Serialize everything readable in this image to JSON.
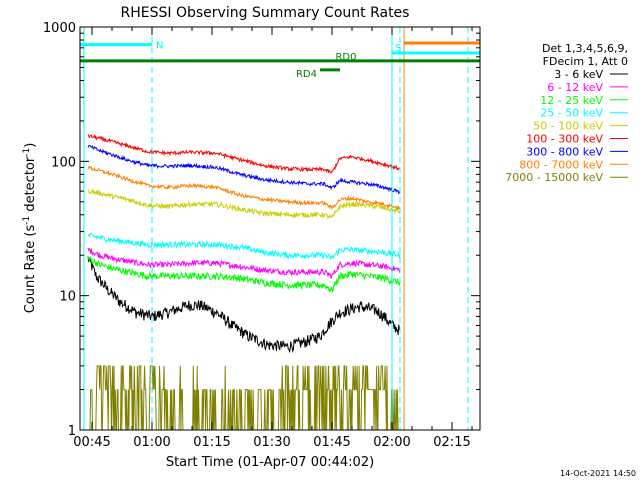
{
  "chart_data": {
    "type": "line",
    "title": "RHESSI Observing Summary Count Rates",
    "xlabel": "Start Time (01-Apr-07 00:44:02)",
    "ylabel_prefix": "Count Rate (s",
    "ylabel_sup1": "-1",
    "ylabel_mid": " detector",
    "ylabel_sup2": "-1",
    "ylabel_suffix": ")",
    "yscale": "log",
    "xlim": [
      -2,
      98
    ],
    "ylim": [
      1,
      1000
    ],
    "x_ticks": [
      {
        "x": 1,
        "label": "00:45"
      },
      {
        "x": 16,
        "label": "01:00"
      },
      {
        "x": 31,
        "label": "01:15"
      },
      {
        "x": 46,
        "label": "01:30"
      },
      {
        "x": 61,
        "label": "01:45"
      },
      {
        "x": 76,
        "label": "02:00"
      },
      {
        "x": 91,
        "label": "02:15"
      }
    ],
    "y_ticks": [
      {
        "y": 1,
        "label": "1"
      },
      {
        "y": 10,
        "label": "10"
      },
      {
        "y": 100,
        "label": "100"
      },
      {
        "y": 1000,
        "label": "1000"
      }
    ],
    "legend_header": [
      "Det 1,3,4,5,6,9,",
      "FDecim 1, Att 0"
    ],
    "series": [
      {
        "name": "3 - 6 keV",
        "color": "#000000",
        "noise": 0.1,
        "x": [
          0,
          2,
          5,
          8,
          12,
          16,
          20,
          25,
          28,
          32,
          36,
          40,
          45,
          50,
          54,
          58,
          61,
          63,
          66,
          68,
          72,
          74,
          76,
          78
        ],
        "values": [
          19,
          14,
          11,
          9,
          7.5,
          7,
          7.5,
          8.5,
          8.5,
          7.5,
          6,
          5,
          4.3,
          4.2,
          4.5,
          5,
          6.5,
          7.5,
          8,
          8.3,
          7.8,
          7,
          6,
          5.5
        ]
      },
      {
        "name": "6 - 12 keV",
        "color": "#ff00ff",
        "noise": 0.05,
        "x": [
          0,
          3,
          6,
          10,
          15,
          20,
          26,
          32,
          38,
          44,
          50,
          55,
          59,
          61,
          63,
          66,
          70,
          74,
          78
        ],
        "values": [
          22,
          20,
          19,
          18,
          17,
          17,
          17.5,
          17.5,
          16.5,
          15.5,
          15,
          15,
          15,
          14,
          17,
          17.5,
          17,
          16.5,
          15.5
        ]
      },
      {
        "name": "12 - 25 keV",
        "color": "#00ff00",
        "noise": 0.06,
        "x": [
          0,
          3,
          6,
          10,
          15,
          20,
          26,
          32,
          38,
          44,
          50,
          55,
          59,
          61,
          63,
          66,
          70,
          74,
          78
        ],
        "values": [
          19,
          17,
          16,
          15,
          14,
          14,
          14,
          14,
          13.5,
          12.5,
          12,
          12,
          12,
          11,
          14,
          14.5,
          14,
          13.5,
          12.5
        ]
      },
      {
        "name": "25 - 50 keV",
        "color": "#00ffff",
        "noise": 0.05,
        "x": [
          0,
          3,
          6,
          10,
          15,
          20,
          26,
          32,
          38,
          44,
          50,
          55,
          59,
          61,
          63,
          66,
          70,
          74,
          78
        ],
        "values": [
          28,
          27,
          26,
          25,
          24,
          24,
          24,
          24,
          23,
          21,
          20,
          20,
          20,
          19,
          22,
          22,
          21.5,
          21,
          20
        ]
      },
      {
        "name": "50 - 100 keV",
        "color": "#cccc00",
        "noise": 0.04,
        "x": [
          0,
          3,
          6,
          10,
          15,
          20,
          26,
          32,
          38,
          44,
          50,
          55,
          59,
          61,
          63,
          66,
          70,
          74,
          78
        ],
        "values": [
          60,
          58,
          55,
          52,
          47,
          46,
          48,
          48,
          44,
          41,
          40,
          40,
          40,
          38,
          46,
          48,
          47,
          45,
          42
        ]
      },
      {
        "name": "100 - 300 keV",
        "color": "#ff0000",
        "noise": 0.03,
        "x": [
          0,
          3,
          6,
          10,
          15,
          20,
          26,
          32,
          38,
          44,
          50,
          55,
          59,
          61,
          63,
          66,
          70,
          74,
          78
        ],
        "values": [
          155,
          148,
          140,
          130,
          118,
          115,
          117,
          115,
          103,
          93,
          88,
          87,
          87,
          82,
          105,
          108,
          102,
          95,
          88
        ]
      },
      {
        "name": "300 - 800 keV",
        "color": "#0000ff",
        "noise": 0.03,
        "x": [
          0,
          3,
          6,
          10,
          15,
          20,
          26,
          32,
          38,
          44,
          50,
          55,
          59,
          61,
          63,
          66,
          70,
          74,
          78
        ],
        "values": [
          130,
          120,
          112,
          102,
          93,
          92,
          93,
          90,
          80,
          73,
          70,
          68,
          68,
          63,
          72,
          70,
          68,
          64,
          59
        ]
      },
      {
        "name": "800 - 7000 keV",
        "color": "#ff8000",
        "noise": 0.03,
        "x": [
          0,
          3,
          6,
          10,
          15,
          20,
          26,
          32,
          38,
          44,
          50,
          55,
          59,
          61,
          63,
          66,
          70,
          74,
          78
        ],
        "values": [
          90,
          85,
          80,
          73,
          66,
          64,
          66,
          64,
          56,
          52,
          50,
          49,
          49,
          45,
          52,
          53,
          50,
          48,
          45
        ]
      },
      {
        "name": "7000 - 15000 keV",
        "color": "#808000",
        "noise": 0.0,
        "x": [
          0,
          78
        ],
        "values": [
          1.4,
          1.4
        ]
      }
    ],
    "segment_bars": [
      {
        "label": "N",
        "color": "#00ffff",
        "x0": -2,
        "x1": 16,
        "y": 740
      },
      {
        "label": "S",
        "color": "#00ffff",
        "x0": 76,
        "x1": 98,
        "y": 640
      },
      {
        "label": "",
        "color": "#ff8000",
        "x0": 79,
        "x1": 98,
        "y": 760
      },
      {
        "label": "RD0",
        "color": "#008000",
        "x0": -2,
        "x1": 98,
        "y": 560
      },
      {
        "label": "RD4",
        "color": "#008000",
        "x0": 58,
        "x1": 63,
        "y": 480
      }
    ],
    "vertical_markers": [
      {
        "x": -1,
        "color": "#00ffff",
        "style": "solid"
      },
      {
        "x": 16,
        "color": "#00ffff",
        "style": "dashed"
      },
      {
        "x": 76,
        "color": "#00ffff",
        "style": "solid"
      },
      {
        "x": 78,
        "color": "#00ffff",
        "style": "dashed"
      },
      {
        "x": 79,
        "color": "#ff8000",
        "style": "solid"
      },
      {
        "x": 95,
        "color": "#ff8000",
        "style": "dashed"
      },
      {
        "x": 95,
        "color": "#00ffff",
        "style": "dashed"
      }
    ],
    "footer_date": "14-Oct-2021 14:50"
  }
}
